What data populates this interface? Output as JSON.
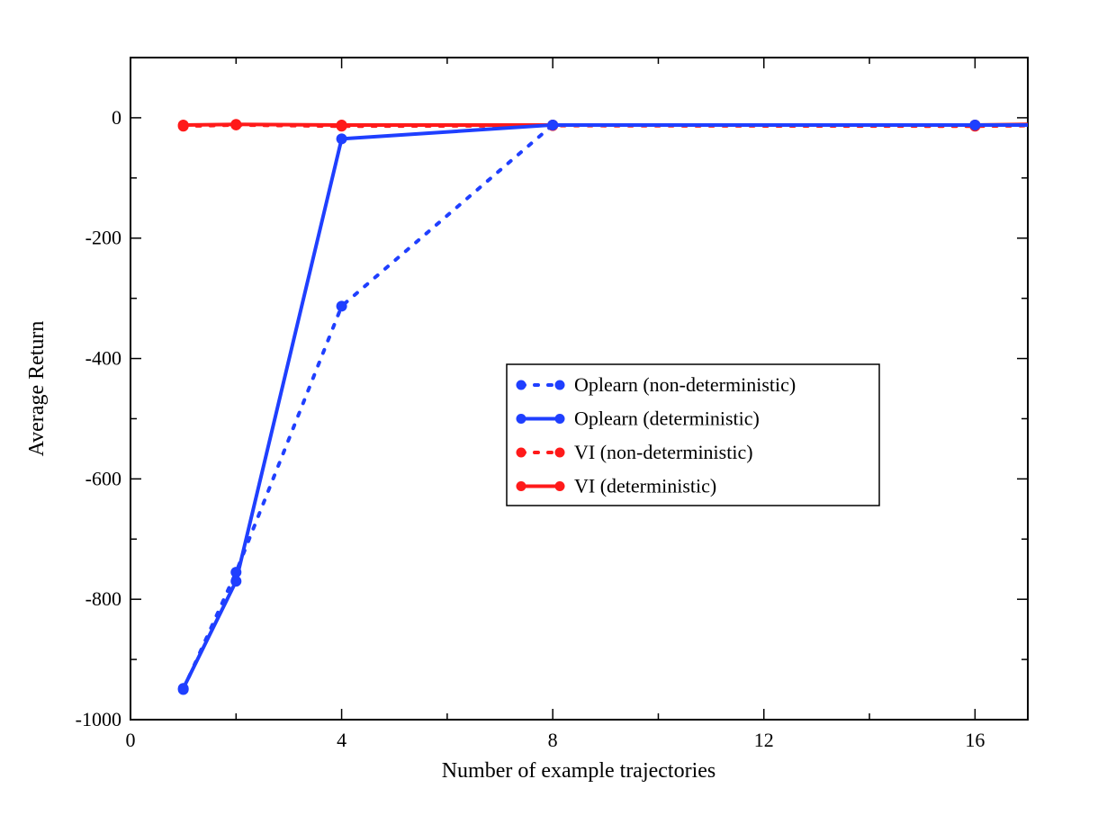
{
  "chart_data": {
    "type": "line",
    "title": "",
    "xlabel": "Number of example trajectories",
    "ylabel": "Average Return",
    "xlim": [
      0,
      17
    ],
    "ylim": [
      -1000,
      100
    ],
    "xticks": [
      0,
      4,
      8,
      12,
      16
    ],
    "xtick_labels": [
      "0",
      "4",
      "8",
      "12",
      "16"
    ],
    "yticks": [
      0,
      -200,
      -400,
      -600,
      -800,
      -1000
    ],
    "ytick_labels": [
      "0",
      "-200",
      "-400",
      "-600",
      "-800",
      "-1000"
    ],
    "legend_position": "center-right",
    "series": [
      {
        "name": "Oplearn (non-deterministic)",
        "color": "#1f3fff",
        "style": "dotted",
        "x": [
          1,
          2,
          4,
          8,
          16,
          17
        ],
        "y": [
          -950,
          -755,
          -313,
          -12,
          -12,
          -12
        ]
      },
      {
        "name": "Oplearn (deterministic)",
        "color": "#1f3fff",
        "style": "solid",
        "x": [
          1,
          2,
          4,
          8,
          16,
          17
        ],
        "y": [
          -948,
          -770,
          -35,
          -12,
          -12,
          -12
        ]
      },
      {
        "name": "VI (non-deterministic)",
        "color": "#ff1a1a",
        "style": "dotted",
        "x": [
          1,
          2,
          4,
          8,
          16,
          17
        ],
        "y": [
          -14,
          -12,
          -14,
          -13,
          -14,
          -13
        ]
      },
      {
        "name": "VI (deterministic)",
        "color": "#ff1a1a",
        "style": "solid",
        "x": [
          1,
          2,
          4,
          8,
          16,
          17
        ],
        "y": [
          -12,
          -11,
          -12,
          -12,
          -12,
          -11
        ]
      }
    ]
  }
}
